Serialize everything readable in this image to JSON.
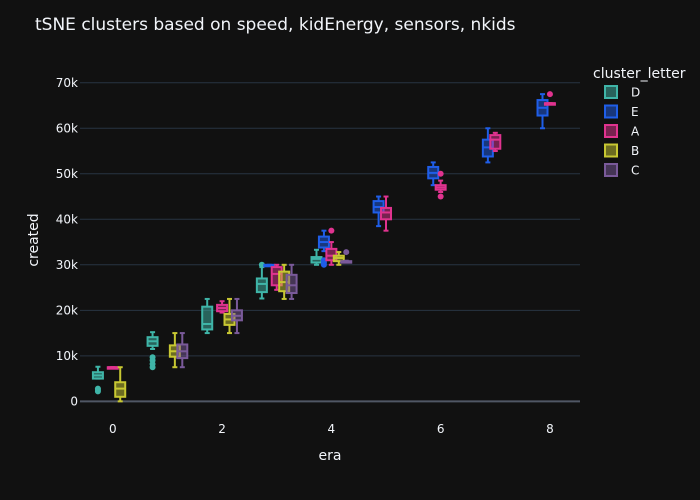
{
  "chart_data": {
    "type": "box",
    "title": "tSNE clusters based on speed, kidEnergy, sensors, nkids",
    "xlabel": "era",
    "ylabel": "created",
    "xlim": [
      -0.6,
      8.55
    ],
    "ylim": [
      -3000,
      75000
    ],
    "x_ticks": [
      0,
      2,
      4,
      6,
      8
    ],
    "y_ticks": [
      0,
      10000,
      20000,
      30000,
      40000,
      50000,
      60000,
      70000
    ],
    "y_tick_labels": [
      "0",
      "10k",
      "20k",
      "30k",
      "40k",
      "50k",
      "60k",
      "70k"
    ],
    "grid": "horizontal",
    "legend": {
      "title": "cluster_letter",
      "placement": "right"
    },
    "series": [
      {
        "name": "D",
        "color": "#3fb5a8",
        "boxes": [
          {
            "era": 0,
            "min": 5000,
            "q1": 5000,
            "median": 5700,
            "q3": 6400,
            "max": 7600,
            "outliers": [
              2200,
              2500,
              2800
            ]
          },
          {
            "era": 1,
            "min": 11500,
            "q1": 12200,
            "median": 13200,
            "q3": 14100,
            "max": 15200,
            "outliers": [
              7500,
              8200,
              9000,
              9700
            ]
          },
          {
            "era": 2,
            "min": 15000,
            "q1": 15800,
            "median": 17000,
            "q3": 20800,
            "max": 22500,
            "outliers": []
          },
          {
            "era": 3,
            "min": 22600,
            "q1": 24000,
            "median": 25800,
            "q3": 27000,
            "max": 29500,
            "outliers": [
              30000
            ]
          },
          {
            "era": 4,
            "min": 30000,
            "q1": 30500,
            "median": 31300,
            "q3": 31700,
            "max": 33300,
            "outliers": []
          }
        ]
      },
      {
        "name": "E",
        "color": "#1f5ee8",
        "boxes": [
          {
            "era": 3,
            "min": 29800,
            "q1": 29800,
            "median": 29900,
            "q3": 30000,
            "max": 30000,
            "outliers": []
          },
          {
            "era": 4,
            "min": 33000,
            "q1": 33800,
            "median": 35000,
            "q3": 36200,
            "max": 37500,
            "outliers": [
              30000,
              30500,
              31000
            ]
          },
          {
            "era": 5,
            "min": 38500,
            "q1": 41500,
            "median": 42700,
            "q3": 44000,
            "max": 45000,
            "outliers": []
          },
          {
            "era": 6,
            "min": 47500,
            "q1": 49000,
            "median": 50200,
            "q3": 51500,
            "max": 52500,
            "outliers": []
          },
          {
            "era": 7,
            "min": 52500,
            "q1": 53800,
            "median": 55800,
            "q3": 57500,
            "max": 60000,
            "outliers": []
          },
          {
            "era": 8,
            "min": 60000,
            "q1": 62800,
            "median": 64500,
            "q3": 66200,
            "max": 67500,
            "outliers": []
          }
        ]
      },
      {
        "name": "A",
        "color": "#e0338f",
        "boxes": [
          {
            "era": 0,
            "min": 7500,
            "q1": 7500,
            "median": 7500,
            "q3": 7500,
            "max": 7500,
            "outliers": []
          },
          {
            "era": 2,
            "min": 19500,
            "q1": 19800,
            "median": 20500,
            "q3": 21200,
            "max": 22000,
            "outliers": []
          },
          {
            "era": 3,
            "min": 24500,
            "q1": 25500,
            "median": 28000,
            "q3": 29500,
            "max": 30000,
            "outliers": []
          },
          {
            "era": 4,
            "min": 30000,
            "q1": 31000,
            "median": 32000,
            "q3": 33500,
            "max": 35000,
            "outliers": [
              37500
            ]
          },
          {
            "era": 5,
            "min": 37500,
            "q1": 40000,
            "median": 41500,
            "q3": 42500,
            "max": 45000,
            "outliers": []
          },
          {
            "era": 6,
            "min": 46000,
            "q1": 46500,
            "median": 47000,
            "q3": 47500,
            "max": 48500,
            "outliers": [
              45000,
              50000
            ]
          },
          {
            "era": 7,
            "min": 55000,
            "q1": 55500,
            "median": 57500,
            "q3": 58500,
            "max": 59000,
            "outliers": []
          },
          {
            "era": 8,
            "min": 65500,
            "q1": 65500,
            "median": 65500,
            "q3": 65500,
            "max": 65500,
            "outliers": [
              67500
            ]
          }
        ]
      },
      {
        "name": "B",
        "color": "#c8c832",
        "boxes": [
          {
            "era": 0,
            "min": 0,
            "q1": 1000,
            "median": 2800,
            "q3": 4200,
            "max": 7500,
            "outliers": []
          },
          {
            "era": 1,
            "min": 7500,
            "q1": 9800,
            "median": 11000,
            "q3": 12300,
            "max": 15000,
            "outliers": []
          },
          {
            "era": 2,
            "min": 15000,
            "q1": 16800,
            "median": 18000,
            "q3": 19200,
            "max": 22500,
            "outliers": []
          },
          {
            "era": 3,
            "min": 22500,
            "q1": 24200,
            "median": 26200,
            "q3": 28500,
            "max": 30000,
            "outliers": []
          },
          {
            "era": 4,
            "min": 30000,
            "q1": 30800,
            "median": 31500,
            "q3": 32000,
            "max": 32800,
            "outliers": []
          }
        ]
      },
      {
        "name": "C",
        "color": "#7a5a9a",
        "boxes": [
          {
            "era": 1,
            "min": 7500,
            "q1": 9500,
            "median": 11000,
            "q3": 12500,
            "max": 15000,
            "outliers": []
          },
          {
            "era": 2,
            "min": 15000,
            "q1": 17800,
            "median": 18800,
            "q3": 20000,
            "max": 22500,
            "outliers": []
          },
          {
            "era": 3,
            "min": 22500,
            "q1": 23800,
            "median": 25500,
            "q3": 27800,
            "max": 30000,
            "outliers": []
          },
          {
            "era": 4,
            "min": 30500,
            "q1": 30600,
            "median": 30700,
            "q3": 30800,
            "max": 30900,
            "outliers": [
              32800
            ]
          }
        ]
      }
    ]
  }
}
